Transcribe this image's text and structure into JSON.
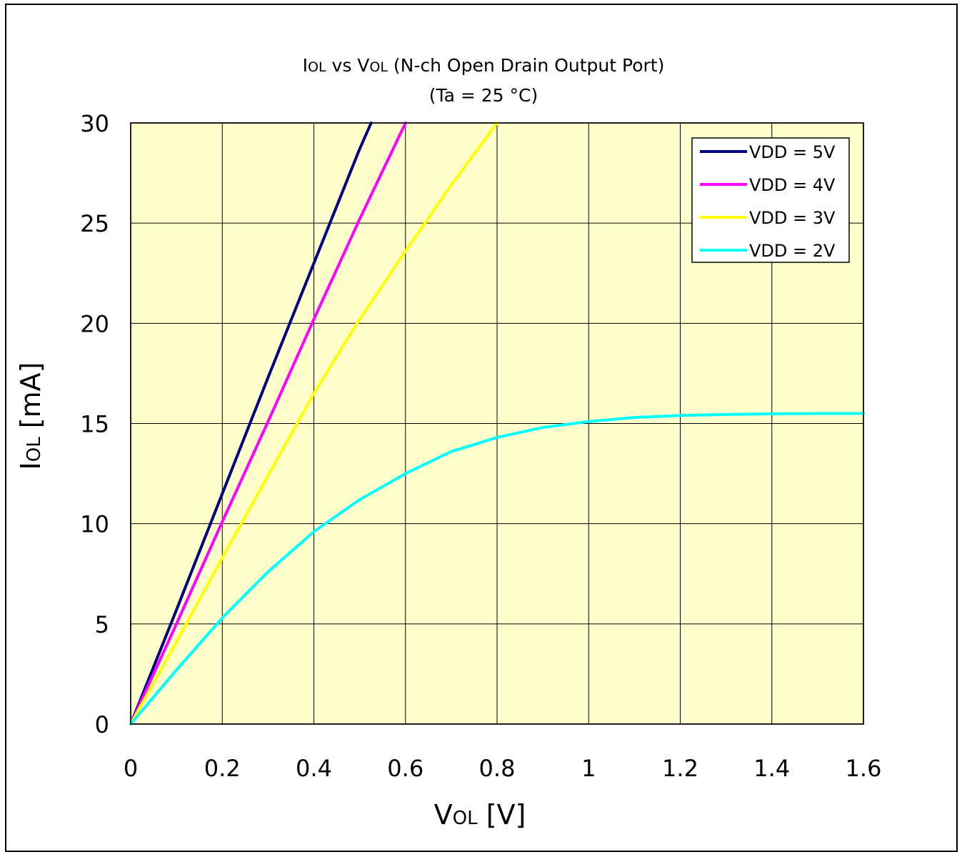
{
  "chart_data": {
    "type": "line",
    "title_line1_main": "I",
    "title_line1_sub": "OL",
    "title_line1_mid": " vs V",
    "title_line1_sub2": "OL",
    "title_line1_rest": " (N-ch Open Drain Output Port)",
    "subtitle": "(Ta = 25 °C)",
    "xlabel_main": "V",
    "xlabel_sub": "OL",
    "xlabel_rest": " [V]",
    "ylabel_main": "I",
    "ylabel_sub": "OL",
    "ylabel_rest": " [mA]",
    "xlim": [
      0,
      1.6
    ],
    "ylim": [
      0,
      30
    ],
    "x_ticks": [
      "0",
      "0.2",
      "0.4",
      "0.6",
      "0.8",
      "1",
      "1.2",
      "1.4",
      "1.6"
    ],
    "y_ticks": [
      "0",
      "5",
      "10",
      "15",
      "20",
      "25",
      "30"
    ],
    "grid": true,
    "plot_background": "#ffffcc",
    "legend_position": "top-right",
    "series": [
      {
        "name": "VDD = 5V",
        "color": "#000080",
        "x": [
          0,
          0.1,
          0.2,
          0.3,
          0.4,
          0.5,
          0.525
        ],
        "y": [
          0,
          5.7,
          11.5,
          17.3,
          23.0,
          28.7,
          30
        ]
      },
      {
        "name": "VDD = 4V",
        "color": "#ff00ff",
        "x": [
          0,
          0.1,
          0.2,
          0.3,
          0.4,
          0.5,
          0.6
        ],
        "y": [
          0,
          5.0,
          10.1,
          15.1,
          20.2,
          25.2,
          30
        ]
      },
      {
        "name": "VDD = 3V",
        "color": "#ffff00",
        "x": [
          0,
          0.1,
          0.2,
          0.3,
          0.4,
          0.5,
          0.6,
          0.7,
          0.8
        ],
        "y": [
          0,
          4.1,
          8.3,
          12.4,
          16.5,
          20.2,
          23.6,
          26.9,
          30
        ]
      },
      {
        "name": "VDD = 2V",
        "color": "#00ffff",
        "x": [
          0,
          0.1,
          0.2,
          0.3,
          0.4,
          0.5,
          0.6,
          0.7,
          0.8,
          0.9,
          1.0,
          1.1,
          1.2,
          1.3,
          1.4,
          1.5,
          1.6
        ],
        "y": [
          0,
          2.7,
          5.3,
          7.6,
          9.6,
          11.2,
          12.5,
          13.6,
          14.3,
          14.8,
          15.1,
          15.3,
          15.4,
          15.45,
          15.48,
          15.5,
          15.5
        ]
      }
    ]
  }
}
